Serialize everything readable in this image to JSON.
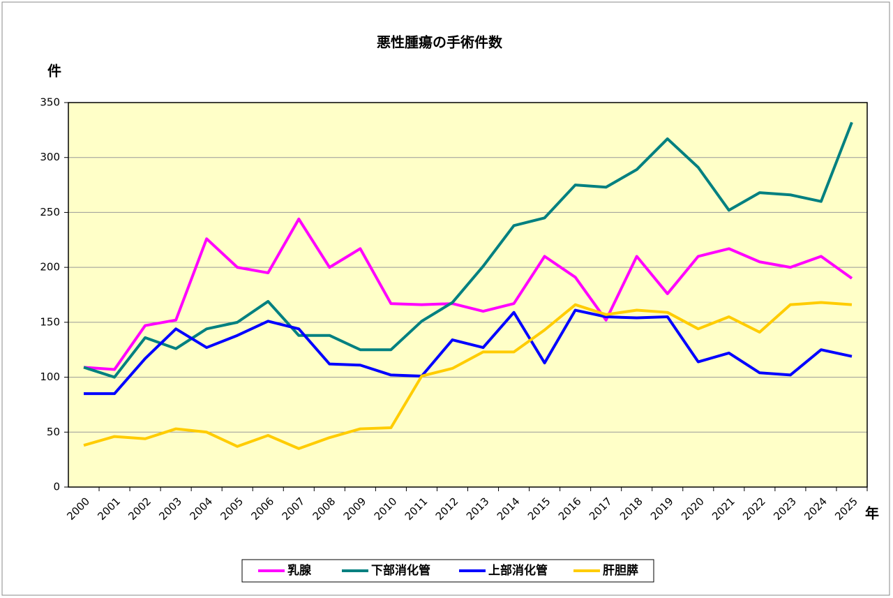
{
  "chart_data": {
    "type": "line",
    "title": "悪性腫瘍の手術件数",
    "y_label": "件",
    "x_label": "年",
    "categories": [
      "2000",
      "2001",
      "2002",
      "2003",
      "2004",
      "2005",
      "2006",
      "2007",
      "2008",
      "2009",
      "2010",
      "2011",
      "2012",
      "2013",
      "2014",
      "2015",
      "2016",
      "2017",
      "2018",
      "2019",
      "2020",
      "2021",
      "2022",
      "2023",
      "2024",
      "2025"
    ],
    "series": [
      {
        "name": "乳腺",
        "color": "#ff00ff",
        "values": [
          109,
          107,
          147,
          152,
          226,
          200,
          195,
          244,
          200,
          217,
          167,
          166,
          167,
          160,
          167,
          210,
          191,
          152,
          210,
          176,
          210,
          217,
          205,
          200,
          210,
          190
        ]
      },
      {
        "name": "下部消化管",
        "color": "#008080",
        "values": [
          109,
          100,
          136,
          126,
          144,
          150,
          169,
          138,
          138,
          125,
          125,
          151,
          168,
          201,
          238,
          245,
          275,
          273,
          289,
          317,
          291,
          252,
          268,
          266,
          260,
          332
        ]
      },
      {
        "name": "上部消化管",
        "color": "#0000ff",
        "values": [
          85,
          85,
          117,
          144,
          127,
          138,
          151,
          144,
          112,
          111,
          102,
          101,
          134,
          127,
          159,
          113,
          161,
          155,
          154,
          155,
          114,
          122,
          104,
          102,
          125,
          119
        ]
      },
      {
        "name": "肝胆膵",
        "color": "#ffcc00",
        "values": [
          38,
          46,
          44,
          53,
          50,
          37,
          47,
          35,
          45,
          53,
          54,
          101,
          108,
          123,
          123,
          143,
          166,
          157,
          161,
          159,
          144,
          155,
          141,
          166,
          168,
          166
        ]
      }
    ],
    "ylim": [
      0,
      350
    ],
    "yticks": [
      0,
      50,
      100,
      150,
      200,
      250,
      300,
      350
    ],
    "grid": true,
    "plot_background": "#ffffc8"
  }
}
